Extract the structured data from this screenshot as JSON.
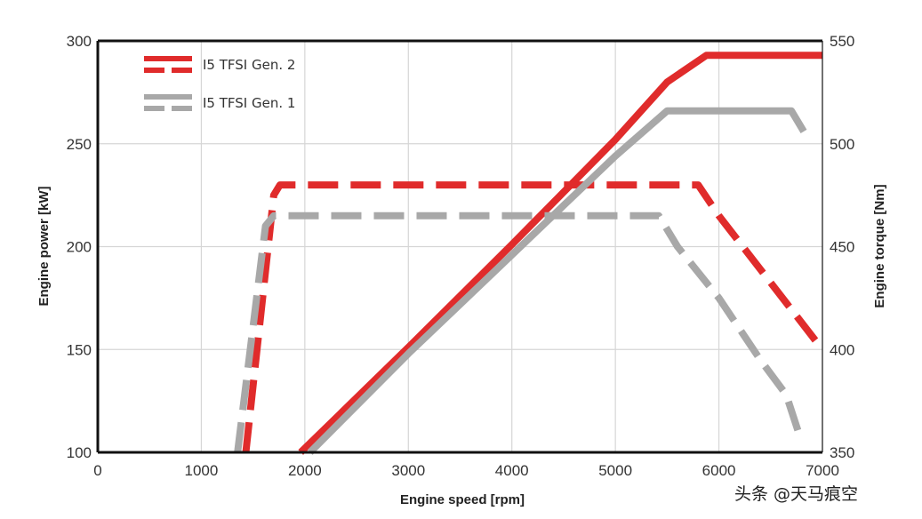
{
  "chart_data": {
    "type": "line",
    "title": "",
    "xlabel": "Engine speed [rpm]",
    "ylabel_left": "Engine power [kW]",
    "ylabel_right": "Engine torque [Nm]",
    "xlim": [
      0,
      7000
    ],
    "ylim_left": [
      100,
      300
    ],
    "ylim_right": [
      350,
      550
    ],
    "grid": true,
    "x_ticks": [
      0,
      1000,
      2000,
      3000,
      4000,
      5000,
      6000,
      7000
    ],
    "y_ticks_left": [
      100,
      150,
      200,
      250,
      300
    ],
    "y_ticks_right": [
      350,
      400,
      450,
      500,
      550
    ],
    "legend": {
      "position": "top-left",
      "entries": [
        "I5 TFSI Gen. 2",
        "I5 TFSI Gen. 1"
      ]
    },
    "series": [
      {
        "name": "I5 TFSI Gen. 2 power",
        "quantity": "power",
        "axis": "left",
        "style": "solid",
        "color": "#e02b2b",
        "x": [
          1960,
          3000,
          4000,
          5000,
          5500,
          5880,
          7000
        ],
        "y": [
          100,
          151,
          201,
          252,
          280,
          293,
          293
        ]
      },
      {
        "name": "I5 TFSI Gen. 2 torque",
        "quantity": "torque",
        "axis": "right",
        "style": "dashed",
        "color": "#e02b2b",
        "x": [
          1430,
          1700,
          1760,
          5800,
          6000,
          7000
        ],
        "y": [
          350,
          475,
          480,
          480,
          465,
          400
        ]
      },
      {
        "name": "I5 TFSI Gen. 1 power",
        "quantity": "power",
        "axis": "left",
        "style": "solid",
        "color": "#a8a8a8",
        "x": [
          2050,
          3000,
          4000,
          5000,
          5500,
          5700,
          6700,
          6820
        ],
        "y": [
          100,
          148,
          196,
          244,
          266,
          266,
          266,
          256
        ]
      },
      {
        "name": "I5 TFSI Gen. 1 torque",
        "quantity": "torque",
        "axis": "right",
        "style": "dashed",
        "color": "#a8a8a8",
        "x": [
          1350,
          1620,
          1700,
          5420,
          5600,
          6000,
          6400,
          6650,
          6780,
          6800
        ],
        "y": [
          350,
          460,
          465,
          465,
          450,
          425,
          395,
          378,
          358,
          355
        ]
      }
    ]
  },
  "colors": {
    "gen2": "#e02b2b",
    "gen1": "#a8a8a8",
    "grid": "#d6d6d6",
    "frame": "#111111"
  },
  "watermark": "头条 @天马痕空"
}
